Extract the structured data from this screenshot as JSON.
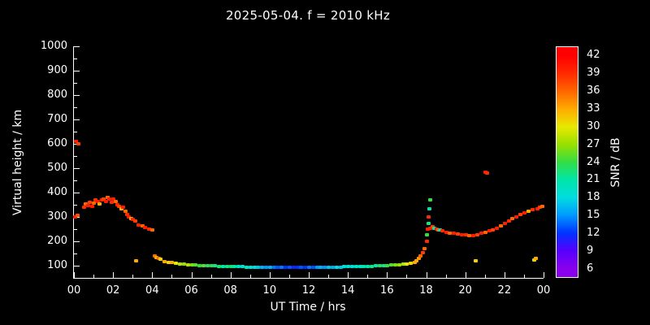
{
  "title": "2025-05-04. f = 2010 kHz",
  "chart_data": {
    "type": "scatter",
    "title": "2025-05-04. f = 2010 kHz",
    "xlabel": "UT Time / hrs",
    "ylabel": "Virtual height / km",
    "colorbar_label": "SNR / dB",
    "background": "#000000",
    "axis_color": "#ffffff",
    "xlim": [
      0,
      24
    ],
    "ylim": [
      50,
      1000
    ],
    "snr_range": [
      4.5,
      43.5
    ],
    "grid": false,
    "x_ticks": {
      "values": [
        0,
        2,
        4,
        6,
        8,
        10,
        12,
        14,
        16,
        18,
        20,
        22,
        24
      ],
      "labels": [
        "00",
        "02",
        "04",
        "06",
        "08",
        "10",
        "12",
        "14",
        "16",
        "18",
        "20",
        "22",
        "00"
      ],
      "minor_values": [
        1,
        3,
        5,
        7,
        9,
        11,
        13,
        15,
        17,
        19,
        21,
        23
      ]
    },
    "y_ticks": {
      "values": [
        100,
        200,
        300,
        400,
        500,
        600,
        700,
        800,
        900,
        1000
      ],
      "labels": [
        "100",
        "200",
        "300",
        "400",
        "500",
        "600",
        "700",
        "800",
        "900",
        "1000"
      ],
      "minor_values": [
        150,
        250,
        350,
        450,
        550,
        650,
        750,
        850,
        950
      ]
    },
    "colorbar_ticks": [
      42,
      39,
      36,
      33,
      30,
      27,
      24,
      21,
      18,
      15,
      12,
      9,
      6
    ],
    "colormap": [
      {
        "snr": 6,
        "color": "#8800ee"
      },
      {
        "snr": 9,
        "color": "#5500ff"
      },
      {
        "snr": 12,
        "color": "#0033ff"
      },
      {
        "snr": 15,
        "color": "#0099ff"
      },
      {
        "snr": 18,
        "color": "#00dde0"
      },
      {
        "snr": 21,
        "color": "#00e6a8"
      },
      {
        "snr": 24,
        "color": "#33dd44"
      },
      {
        "snr": 27,
        "color": "#99e000"
      },
      {
        "snr": 30,
        "color": "#e8e800"
      },
      {
        "snr": 33,
        "color": "#ffaa00"
      },
      {
        "snr": 36,
        "color": "#ff6600"
      },
      {
        "snr": 39,
        "color": "#ff2a00"
      },
      {
        "snr": 42,
        "color": "#ff0000"
      }
    ],
    "points": [
      [
        0.05,
        300,
        40
      ],
      [
        0.1,
        610,
        40
      ],
      [
        0.2,
        600,
        38
      ],
      [
        0.15,
        308,
        37
      ],
      [
        0.5,
        340,
        39
      ],
      [
        0.6,
        352,
        36
      ],
      [
        0.7,
        348,
        40
      ],
      [
        0.8,
        360,
        38
      ],
      [
        0.9,
        345,
        40
      ],
      [
        1.0,
        358,
        36
      ],
      [
        1.1,
        370,
        39
      ],
      [
        1.2,
        365,
        40
      ],
      [
        1.3,
        355,
        33
      ],
      [
        1.4,
        370,
        40
      ],
      [
        1.5,
        375,
        38
      ],
      [
        1.6,
        365,
        40
      ],
      [
        1.7,
        380,
        36
      ],
      [
        1.8,
        372,
        40
      ],
      [
        1.9,
        360,
        39
      ],
      [
        2.0,
        375,
        40
      ],
      [
        2.1,
        365,
        36
      ],
      [
        2.2,
        350,
        40
      ],
      [
        2.3,
        345,
        38
      ],
      [
        2.4,
        332,
        33
      ],
      [
        2.5,
        340,
        40
      ],
      [
        2.6,
        322,
        36
      ],
      [
        2.7,
        310,
        39
      ],
      [
        2.8,
        300,
        40
      ],
      [
        2.9,
        294,
        33
      ],
      [
        3.0,
        290,
        40
      ],
      [
        3.1,
        282,
        38
      ],
      [
        3.15,
        120,
        33
      ],
      [
        3.3,
        268,
        40
      ],
      [
        3.5,
        262,
        36
      ],
      [
        3.6,
        256,
        40
      ],
      [
        3.8,
        250,
        39
      ],
      [
        4.0,
        248,
        36
      ],
      [
        4.1,
        140,
        36
      ],
      [
        4.2,
        134,
        33
      ],
      [
        4.3,
        130,
        36
      ],
      [
        4.4,
        126,
        31
      ],
      [
        4.6,
        118,
        33
      ],
      [
        4.8,
        115,
        31
      ],
      [
        5.0,
        112,
        33
      ],
      [
        5.2,
        110,
        30
      ],
      [
        5.4,
        108,
        28
      ],
      [
        5.6,
        106,
        27
      ],
      [
        5.8,
        104,
        28
      ],
      [
        6.0,
        103,
        26
      ],
      [
        6.2,
        102,
        25
      ],
      [
        6.4,
        101,
        24
      ],
      [
        6.6,
        100,
        25
      ],
      [
        6.8,
        100,
        23
      ],
      [
        7.0,
        99,
        24
      ],
      [
        7.2,
        99,
        22
      ],
      [
        7.4,
        98,
        23
      ],
      [
        7.6,
        98,
        21
      ],
      [
        7.8,
        97,
        22
      ],
      [
        8.0,
        97,
        23
      ],
      [
        8.2,
        96,
        21
      ],
      [
        8.4,
        96,
        20
      ],
      [
        8.6,
        96,
        19
      ],
      [
        8.8,
        95,
        20
      ],
      [
        9.0,
        95,
        18
      ],
      [
        9.2,
        95,
        19
      ],
      [
        9.4,
        95,
        17
      ],
      [
        9.6,
        94,
        16
      ],
      [
        9.8,
        94,
        15
      ],
      [
        10.0,
        94,
        16
      ],
      [
        10.2,
        94,
        14
      ],
      [
        10.4,
        94,
        13
      ],
      [
        10.6,
        93,
        14
      ],
      [
        10.8,
        93,
        12
      ],
      [
        11.0,
        93,
        13
      ],
      [
        11.2,
        93,
        11
      ],
      [
        11.4,
        93,
        12
      ],
      [
        11.6,
        93,
        13
      ],
      [
        11.8,
        93,
        12
      ],
      [
        12.0,
        93,
        14
      ],
      [
        12.2,
        94,
        13
      ],
      [
        12.4,
        94,
        15
      ],
      [
        12.6,
        94,
        16
      ],
      [
        12.8,
        94,
        15
      ],
      [
        13.0,
        95,
        17
      ],
      [
        13.2,
        95,
        16
      ],
      [
        13.4,
        95,
        18
      ],
      [
        13.6,
        95,
        17
      ],
      [
        13.8,
        96,
        18
      ],
      [
        14.0,
        96,
        19
      ],
      [
        14.2,
        96,
        18
      ],
      [
        14.4,
        97,
        20
      ],
      [
        14.6,
        97,
        19
      ],
      [
        14.8,
        97,
        21
      ],
      [
        15.0,
        98,
        20
      ],
      [
        15.2,
        98,
        22
      ],
      [
        15.4,
        99,
        21
      ],
      [
        15.6,
        99,
        23
      ],
      [
        15.8,
        100,
        22
      ],
      [
        16.0,
        101,
        24
      ],
      [
        16.2,
        102,
        25
      ],
      [
        16.4,
        103,
        26
      ],
      [
        16.6,
        104,
        27
      ],
      [
        16.8,
        106,
        28
      ],
      [
        17.0,
        108,
        30
      ],
      [
        17.2,
        111,
        31
      ],
      [
        17.4,
        115,
        33
      ],
      [
        17.5,
        120,
        33
      ],
      [
        17.6,
        130,
        34
      ],
      [
        17.7,
        141,
        36
      ],
      [
        17.8,
        155,
        38
      ],
      [
        17.9,
        170,
        36
      ],
      [
        18.0,
        200,
        39
      ],
      [
        18.0,
        228,
        24
      ],
      [
        18.05,
        250,
        40
      ],
      [
        18.1,
        272,
        22
      ],
      [
        18.1,
        300,
        39
      ],
      [
        18.15,
        332,
        21
      ],
      [
        18.2,
        370,
        24
      ],
      [
        18.2,
        252,
        40
      ],
      [
        18.3,
        260,
        38
      ],
      [
        18.4,
        255,
        21
      ],
      [
        18.5,
        250,
        40
      ],
      [
        18.6,
        246,
        36
      ],
      [
        18.7,
        248,
        21
      ],
      [
        18.8,
        242,
        39
      ],
      [
        19.0,
        238,
        40
      ],
      [
        19.2,
        235,
        36
      ],
      [
        19.4,
        232,
        40
      ],
      [
        19.6,
        230,
        38
      ],
      [
        19.8,
        228,
        40
      ],
      [
        20.0,
        226,
        39
      ],
      [
        20.2,
        225,
        36
      ],
      [
        20.4,
        224,
        40
      ],
      [
        20.5,
        120,
        31
      ],
      [
        20.6,
        228,
        38
      ],
      [
        20.8,
        232,
        40
      ],
      [
        21.0,
        485,
        40
      ],
      [
        21.1,
        480,
        39
      ],
      [
        21.0,
        238,
        36
      ],
      [
        21.2,
        242,
        40
      ],
      [
        21.4,
        248,
        38
      ],
      [
        21.6,
        255,
        40
      ],
      [
        21.8,
        262,
        36
      ],
      [
        22.0,
        272,
        40
      ],
      [
        22.2,
        282,
        39
      ],
      [
        22.4,
        292,
        36
      ],
      [
        22.6,
        300,
        40
      ],
      [
        22.8,
        310,
        38
      ],
      [
        23.0,
        318,
        40
      ],
      [
        23.2,
        325,
        33
      ],
      [
        23.4,
        330,
        39
      ],
      [
        23.5,
        125,
        31
      ],
      [
        23.6,
        131,
        33
      ],
      [
        23.65,
        335,
        40
      ],
      [
        23.8,
        340,
        38
      ],
      [
        23.9,
        345,
        36
      ]
    ]
  }
}
